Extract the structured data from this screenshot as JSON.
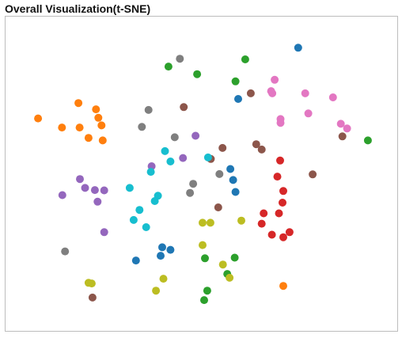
{
  "panel": {
    "title": "Overall Visualization(t-SNE)"
  },
  "chart_data": {
    "type": "scatter",
    "title": "Overall Visualization(t-SNE)",
    "xlabel": "",
    "ylabel": "",
    "axes_visible": false,
    "grid": false,
    "legend": "none",
    "xlim": [
      0,
      100
    ],
    "ylim": [
      0,
      100
    ],
    "series": [
      {
        "color": "#1f77b4",
        "points": [
          [
            74.7,
            90.1
          ],
          [
            59.4,
            73.8
          ],
          [
            57.4,
            51.5
          ],
          [
            58.1,
            48.0
          ],
          [
            58.7,
            44.2
          ],
          [
            40.0,
            26.6
          ],
          [
            42.1,
            25.8
          ],
          [
            39.6,
            23.9
          ],
          [
            33.3,
            22.4
          ]
        ]
      },
      {
        "color": "#ff7f0e",
        "points": [
          [
            8.3,
            67.6
          ],
          [
            18.6,
            72.5
          ],
          [
            23.1,
            70.5
          ],
          [
            23.7,
            67.8
          ],
          [
            14.4,
            64.7
          ],
          [
            18.9,
            64.7
          ],
          [
            24.5,
            65.4
          ],
          [
            21.2,
            61.4
          ],
          [
            24.8,
            60.6
          ],
          [
            70.9,
            14.3
          ]
        ]
      },
      {
        "color": "#2ca02c",
        "points": [
          [
            61.2,
            86.4
          ],
          [
            41.6,
            84.1
          ],
          [
            48.9,
            81.7
          ],
          [
            58.7,
            79.4
          ],
          [
            92.5,
            60.6
          ],
          [
            50.9,
            23.1
          ],
          [
            58.5,
            23.3
          ],
          [
            56.6,
            18.1
          ],
          [
            51.5,
            12.8
          ],
          [
            50.7,
            9.8
          ]
        ]
      },
      {
        "color": "#d62728",
        "points": [
          [
            70.1,
            54.2
          ],
          [
            69.4,
            49.1
          ],
          [
            70.9,
            44.5
          ],
          [
            70.7,
            40.8
          ],
          [
            65.9,
            37.4
          ],
          [
            69.8,
            37.4
          ],
          [
            65.4,
            34.1
          ],
          [
            72.5,
            31.4
          ],
          [
            68.0,
            30.6
          ],
          [
            70.9,
            29.8
          ]
        ]
      },
      {
        "color": "#9467bd",
        "points": [
          [
            48.5,
            62.1
          ],
          [
            45.3,
            55.0
          ],
          [
            37.3,
            52.4
          ],
          [
            19.0,
            48.3
          ],
          [
            20.3,
            45.5
          ],
          [
            22.8,
            44.8
          ],
          [
            25.2,
            44.7
          ],
          [
            14.5,
            43.2
          ],
          [
            23.5,
            41.1
          ],
          [
            25.2,
            31.4
          ]
        ]
      },
      {
        "color": "#8c564b",
        "points": [
          [
            45.5,
            71.2
          ],
          [
            62.6,
            75.6
          ],
          [
            55.4,
            58.2
          ],
          [
            52.4,
            54.7
          ],
          [
            64.0,
            59.4
          ],
          [
            65.4,
            57.7
          ],
          [
            78.4,
            49.8
          ],
          [
            86.0,
            61.9
          ],
          [
            54.3,
            39.3
          ],
          [
            22.2,
            10.6
          ]
        ]
      },
      {
        "color": "#e377c2",
        "points": [
          [
            68.7,
            79.9
          ],
          [
            67.8,
            76.3
          ],
          [
            68.1,
            75.6
          ],
          [
            76.5,
            75.6
          ],
          [
            83.6,
            74.3
          ],
          [
            70.2,
            67.4
          ],
          [
            70.2,
            66.2
          ],
          [
            77.3,
            69.2
          ],
          [
            85.6,
            65.9
          ],
          [
            87.2,
            64.4
          ]
        ]
      },
      {
        "color": "#7f7f7f",
        "points": [
          [
            44.5,
            86.6
          ],
          [
            36.5,
            70.3
          ],
          [
            34.8,
            64.9
          ],
          [
            43.2,
            61.6
          ],
          [
            47.9,
            46.8
          ],
          [
            47.1,
            43.9
          ],
          [
            54.6,
            49.9
          ],
          [
            15.2,
            25.3
          ]
        ]
      },
      {
        "color": "#bcbd22",
        "points": [
          [
            50.3,
            34.4
          ],
          [
            52.3,
            34.4
          ],
          [
            60.2,
            35.1
          ],
          [
            50.3,
            27.3
          ],
          [
            55.5,
            21.1
          ],
          [
            40.3,
            16.6
          ],
          [
            57.2,
            16.9
          ],
          [
            21.2,
            15.3
          ],
          [
            22.0,
            15.1
          ],
          [
            38.4,
            12.8
          ]
        ]
      },
      {
        "color": "#17becf",
        "points": [
          [
            40.7,
            57.2
          ],
          [
            51.7,
            55.2
          ],
          [
            42.1,
            53.9
          ],
          [
            37.1,
            50.6
          ],
          [
            31.7,
            45.5
          ],
          [
            38.9,
            43.0
          ],
          [
            38.1,
            41.3
          ],
          [
            34.2,
            38.5
          ],
          [
            32.7,
            35.3
          ],
          [
            35.9,
            33.0
          ]
        ]
      }
    ]
  }
}
